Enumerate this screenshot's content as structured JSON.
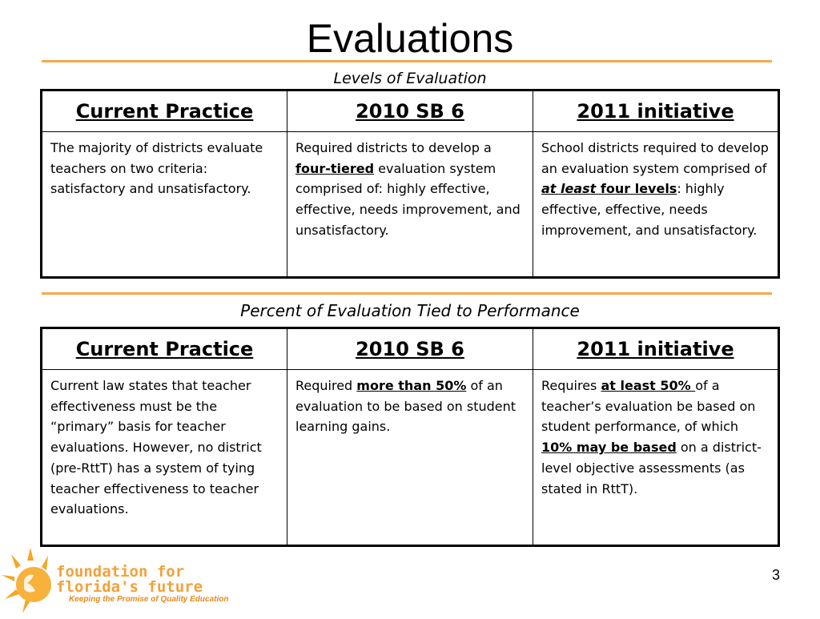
{
  "title": "Evaluations",
  "section1": {
    "caption": "Levels of Evaluation",
    "headers": [
      "Current Practice",
      "2010 SB 6",
      "2011 initiative"
    ],
    "cells": {
      "current": "The majority of districts evaluate teachers on two criteria: satisfactory and unsatisfactory.",
      "sb6_pre": "Required districts to develop a ",
      "sb6_bold": "four-tiered",
      "sb6_post": " evaluation system comprised of: highly effective, effective, needs improvement, and unsatisfactory.",
      "init_pre": "School districts required to develop an evaluation system comprised of ",
      "init_bold_italic": "at least",
      "init_bold": " four levels",
      "init_post": ": highly effective, effective, needs improvement, and unsatisfactory."
    }
  },
  "section2": {
    "caption": "Percent of Evaluation Tied to Performance",
    "headers": [
      "Current Practice",
      "2010 SB 6",
      "2011 initiative"
    ],
    "cells": {
      "current": "Current law states that teacher effectiveness must be the “primary” basis for teacher evaluations. However, no district (pre-RttT) has a system of tying teacher effectiveness to teacher evaluations.",
      "sb6_pre": "Required ",
      "sb6_bold": "more than 50%",
      "sb6_post": " of an evaluation to be based on student learning gains.",
      "init_pre": "Requires ",
      "init_bold1": "at least 50% ",
      "init_mid": "of a teacher’s evaluation be based on student performance, of which ",
      "init_bold2": "10% may be based",
      "init_post": " on a district-level objective assessments (as stated in RttT)."
    }
  },
  "page_number": "3",
  "logo": {
    "line1": "foundation for",
    "line2": "florida's future",
    "tagline": "Keeping the Promise of Quality Education",
    "color": "#f2a23a"
  }
}
